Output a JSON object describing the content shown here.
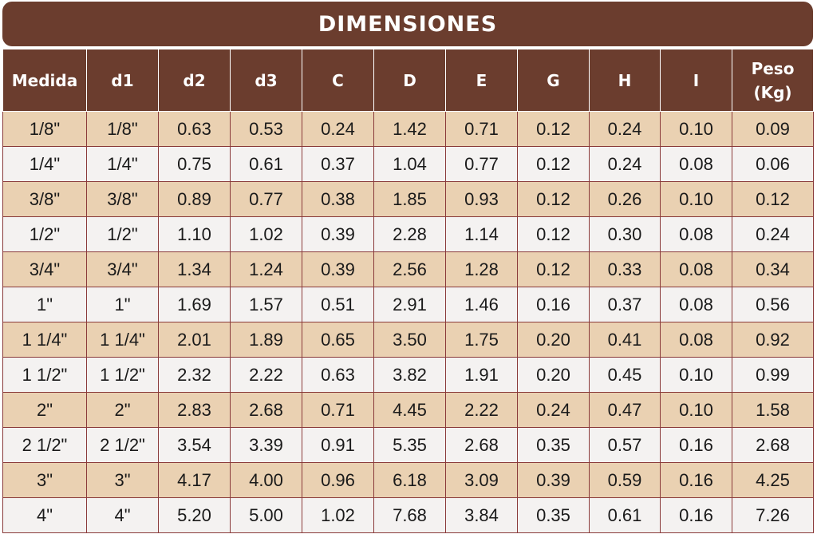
{
  "title": "DIMENSIONES",
  "headers": [
    "Medida",
    "d1",
    "d2",
    "d3",
    "C",
    "D",
    "E",
    "G",
    "H",
    "I",
    "Peso (Kg)"
  ],
  "rows": [
    [
      "1/8\"",
      "1/8\"",
      "0.63",
      "0.53",
      "0.24",
      "1.42",
      "0.71",
      "0.12",
      "0.24",
      "0.10",
      "0.09"
    ],
    [
      "1/4\"",
      "1/4\"",
      "0.75",
      "0.61",
      "0.37",
      "1.04",
      "0.77",
      "0.12",
      "0.24",
      "0.08",
      "0.06"
    ],
    [
      "3/8\"",
      "3/8\"",
      "0.89",
      "0.77",
      "0.38",
      "1.85",
      "0.93",
      "0.12",
      "0.26",
      "0.10",
      "0.12"
    ],
    [
      "1/2\"",
      "1/2\"",
      "1.10",
      "1.02",
      "0.39",
      "2.28",
      "1.14",
      "0.12",
      "0.30",
      "0.08",
      "0.24"
    ],
    [
      "3/4\"",
      "3/4\"",
      "1.34",
      "1.24",
      "0.39",
      "2.56",
      "1.28",
      "0.12",
      "0.33",
      "0.08",
      "0.34"
    ],
    [
      "1\"",
      "1\"",
      "1.69",
      "1.57",
      "0.51",
      "2.91",
      "1.46",
      "0.16",
      "0.37",
      "0.08",
      "0.56"
    ],
    [
      "1 1/4\"",
      "1 1/4\"",
      "2.01",
      "1.89",
      "0.65",
      "3.50",
      "1.75",
      "0.20",
      "0.41",
      "0.08",
      "0.92"
    ],
    [
      "1 1/2\"",
      "1 1/2\"",
      "2.32",
      "2.22",
      "0.63",
      "3.82",
      "1.91",
      "0.20",
      "0.45",
      "0.10",
      "0.99"
    ],
    [
      "2\"",
      "2\"",
      "2.83",
      "2.68",
      "0.71",
      "4.45",
      "2.22",
      "0.24",
      "0.47",
      "0.10",
      "1.58"
    ],
    [
      "2 1/2\"",
      "2 1/2\"",
      "3.54",
      "3.39",
      "0.91",
      "5.35",
      "2.68",
      "0.35",
      "0.57",
      "0.16",
      "2.68"
    ],
    [
      "3\"",
      "3\"",
      "4.17",
      "4.00",
      "0.96",
      "6.18",
      "3.09",
      "0.39",
      "0.59",
      "0.16",
      "4.25"
    ],
    [
      "4\"",
      "4\"",
      "5.20",
      "5.00",
      "1.02",
      "7.68",
      "3.84",
      "0.35",
      "0.61",
      "0.16",
      "7.26"
    ]
  ],
  "colors": {
    "header_bg": "#6b3d2e",
    "header_text": "#ffffff",
    "row_odd_bg": "#ead1b2",
    "row_even_bg": "#f4f2f1",
    "cell_border": "#8a3a3a"
  }
}
